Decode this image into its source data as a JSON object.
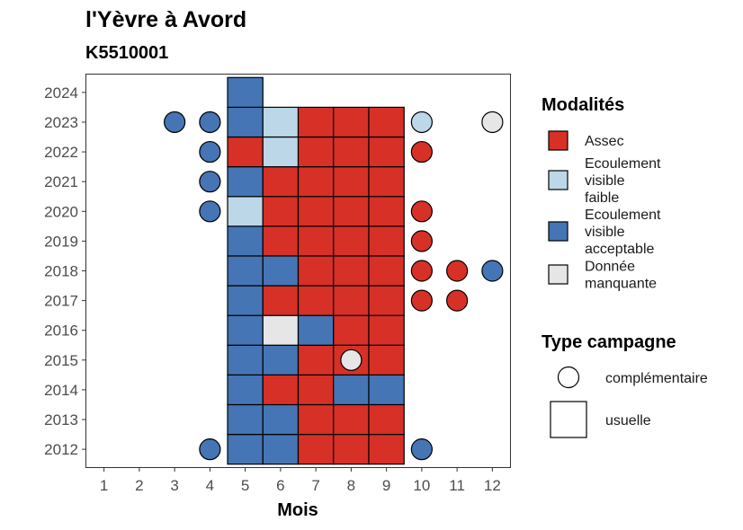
{
  "title": "l'Yèvre à Avord",
  "subtitle": "K5510001",
  "chart_data": {
    "type": "heatmap",
    "xlabel": "Mois",
    "ylabel": "",
    "x_ticks": [
      "1",
      "2",
      "3",
      "4",
      "5",
      "6",
      "7",
      "8",
      "9",
      "10",
      "11",
      "12"
    ],
    "y_ticks": [
      "2012",
      "2013",
      "2014",
      "2015",
      "2016",
      "2017",
      "2018",
      "2019",
      "2020",
      "2021",
      "2022",
      "2023",
      "2024"
    ],
    "categories": {
      "assec": {
        "label": "Assec",
        "color": "#d73027"
      },
      "faible": {
        "label": "Ecoulement visible faible",
        "color": "#bcd7e8"
      },
      "acceptable": {
        "label": "Ecoulement visible acceptable",
        "color": "#4575b4"
      },
      "manquante": {
        "label": "Donnée manquante",
        "color": "#e6e6e6"
      }
    },
    "usuelle": [
      {
        "year": 2012,
        "values": {
          "5": "acceptable",
          "6": "acceptable",
          "7": "assec",
          "8": "assec",
          "9": "assec"
        }
      },
      {
        "year": 2013,
        "values": {
          "5": "acceptable",
          "6": "acceptable",
          "7": "assec",
          "8": "assec",
          "9": "assec"
        }
      },
      {
        "year": 2014,
        "values": {
          "5": "acceptable",
          "6": "assec",
          "7": "assec",
          "8": "acceptable",
          "9": "acceptable"
        }
      },
      {
        "year": 2015,
        "values": {
          "5": "acceptable",
          "6": "acceptable",
          "7": "assec",
          "8": "assec",
          "9": "assec"
        }
      },
      {
        "year": 2016,
        "values": {
          "5": "acceptable",
          "6": "manquante",
          "7": "acceptable",
          "8": "assec",
          "9": "assec"
        }
      },
      {
        "year": 2017,
        "values": {
          "5": "acceptable",
          "6": "assec",
          "7": "assec",
          "8": "assec",
          "9": "assec"
        }
      },
      {
        "year": 2018,
        "values": {
          "5": "acceptable",
          "6": "acceptable",
          "7": "assec",
          "8": "assec",
          "9": "assec"
        }
      },
      {
        "year": 2019,
        "values": {
          "5": "acceptable",
          "6": "assec",
          "7": "assec",
          "8": "assec",
          "9": "assec"
        }
      },
      {
        "year": 2020,
        "values": {
          "5": "faible",
          "6": "assec",
          "7": "assec",
          "8": "assec",
          "9": "assec"
        }
      },
      {
        "year": 2021,
        "values": {
          "5": "acceptable",
          "6": "assec",
          "7": "assec",
          "8": "assec",
          "9": "assec"
        }
      },
      {
        "year": 2022,
        "values": {
          "5": "assec",
          "6": "faible",
          "7": "assec",
          "8": "assec",
          "9": "assec"
        }
      },
      {
        "year": 2023,
        "values": {
          "5": "acceptable",
          "6": "faible",
          "7": "assec",
          "8": "assec",
          "9": "assec"
        }
      },
      {
        "year": 2024,
        "values": {
          "5": "acceptable"
        }
      }
    ],
    "complementaire": [
      {
        "year": 2012,
        "month": 4,
        "value": "acceptable"
      },
      {
        "year": 2012,
        "month": 10,
        "value": "acceptable"
      },
      {
        "year": 2015,
        "month": 8,
        "value": "manquante"
      },
      {
        "year": 2017,
        "month": 10,
        "value": "assec"
      },
      {
        "year": 2017,
        "month": 11,
        "value": "assec"
      },
      {
        "year": 2018,
        "month": 10,
        "value": "assec"
      },
      {
        "year": 2018,
        "month": 11,
        "value": "assec"
      },
      {
        "year": 2018,
        "month": 12,
        "value": "acceptable"
      },
      {
        "year": 2019,
        "month": 10,
        "value": "assec"
      },
      {
        "year": 2020,
        "month": 4,
        "value": "acceptable"
      },
      {
        "year": 2020,
        "month": 10,
        "value": "assec"
      },
      {
        "year": 2021,
        "month": 4,
        "value": "acceptable"
      },
      {
        "year": 2022,
        "month": 4,
        "value": "acceptable"
      },
      {
        "year": 2022,
        "month": 10,
        "value": "assec"
      },
      {
        "year": 2023,
        "month": 3,
        "value": "acceptable"
      },
      {
        "year": 2023,
        "month": 4,
        "value": "acceptable"
      },
      {
        "year": 2023,
        "month": 10,
        "value": "faible"
      },
      {
        "year": 2023,
        "month": 12,
        "value": "manquante"
      }
    ],
    "xlim": [
      0.5,
      12.5
    ],
    "ylim": [
      2011.4,
      2024.6
    ],
    "grid": false,
    "legend_placement": "right"
  },
  "legend": {
    "modalites_title": "Modalités",
    "modalites": [
      {
        "key": "assec",
        "lines": [
          "Assec"
        ]
      },
      {
        "key": "faible",
        "lines": [
          "Ecoulement",
          "visible",
          "faible"
        ]
      },
      {
        "key": "acceptable",
        "lines": [
          "Ecoulement",
          "visible",
          "acceptable"
        ]
      },
      {
        "key": "manquante",
        "lines": [
          "Donnée",
          "manquante"
        ]
      }
    ],
    "type_title": "Type campagne",
    "types": [
      {
        "key": "complementaire",
        "label": "complémentaire"
      },
      {
        "key": "usuelle",
        "label": "usuelle"
      }
    ]
  }
}
